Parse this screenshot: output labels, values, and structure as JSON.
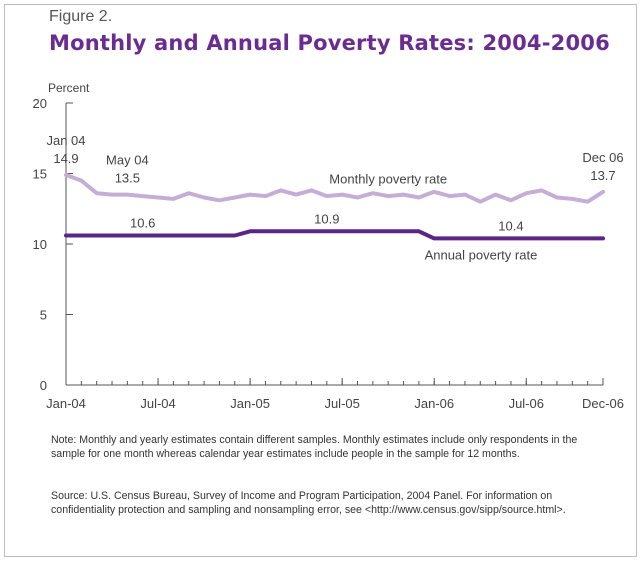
{
  "figure": {
    "label": "Figure 2.",
    "title": "Monthly and Annual Poverty Rates: 2004-2006"
  },
  "notes": {
    "note": "Note:  Monthly and yearly estimates contain different samples. Monthly estimates include only respondents in the sample for one month whereas calendar year estimates include people in the sample for 12 months.",
    "source": "Source: U.S. Census Bureau, Survey of Income and Program Participation, 2004 Panel. For information on confidentiality protection and sampling and nonsampling error, see <http://www.census.gov/sipp/source.html>."
  },
  "chart_data": {
    "type": "line",
    "ylabel": "Percent",
    "ylim": [
      0,
      20
    ],
    "yticks": [
      0,
      5,
      10,
      15,
      20
    ],
    "xlim": [
      0,
      35
    ],
    "xticks": [
      {
        "x": 0,
        "label": "Jan-04"
      },
      {
        "x": 6,
        "label": "Jul-04"
      },
      {
        "x": 12,
        "label": "Jan-05"
      },
      {
        "x": 18,
        "label": "Jul-05"
      },
      {
        "x": 24,
        "label": "Jan-06"
      },
      {
        "x": 30,
        "label": "Jul-06"
      },
      {
        "x": 35,
        "label": "Dec-06"
      }
    ],
    "series": [
      {
        "name": "Monthly poverty rate",
        "color": "#c4aed6",
        "values": [
          14.9,
          14.5,
          13.6,
          13.5,
          13.5,
          13.4,
          13.3,
          13.2,
          13.6,
          13.3,
          13.1,
          13.3,
          13.5,
          13.4,
          13.8,
          13.5,
          13.8,
          13.4,
          13.5,
          13.3,
          13.6,
          13.4,
          13.5,
          13.3,
          13.7,
          13.4,
          13.5,
          13.0,
          13.5,
          13.1,
          13.6,
          13.8,
          13.3,
          13.2,
          13.0,
          13.7
        ]
      },
      {
        "name": "Annual poverty rate",
        "color": "#5b2586",
        "values": [
          10.6,
          10.6,
          10.6,
          10.6,
          10.6,
          10.6,
          10.6,
          10.6,
          10.6,
          10.6,
          10.6,
          10.6,
          10.9,
          10.9,
          10.9,
          10.9,
          10.9,
          10.9,
          10.9,
          10.9,
          10.9,
          10.9,
          10.9,
          10.9,
          10.4,
          10.4,
          10.4,
          10.4,
          10.4,
          10.4,
          10.4,
          10.4,
          10.4,
          10.4,
          10.4,
          10.4
        ]
      }
    ],
    "annotations": [
      {
        "line1": "Jan 04",
        "line2": "14.9",
        "x": 0,
        "y": 14.9
      },
      {
        "line1": "May 04",
        "line2": "13.5",
        "x": 4,
        "y": 13.5
      },
      {
        "line1": "Dec 06",
        "line2": "13.7",
        "x": 35,
        "y": 13.7
      },
      {
        "line1": "10.6",
        "x": 5,
        "y": 10.6
      },
      {
        "line1": "10.9",
        "x": 17,
        "y": 10.9
      },
      {
        "line1": "10.4",
        "x": 29,
        "y": 10.4
      }
    ],
    "series_labels": [
      {
        "text": "Monthly poverty rate",
        "x": 21
      },
      {
        "text": "Annual poverty rate",
        "x": 29
      }
    ]
  }
}
